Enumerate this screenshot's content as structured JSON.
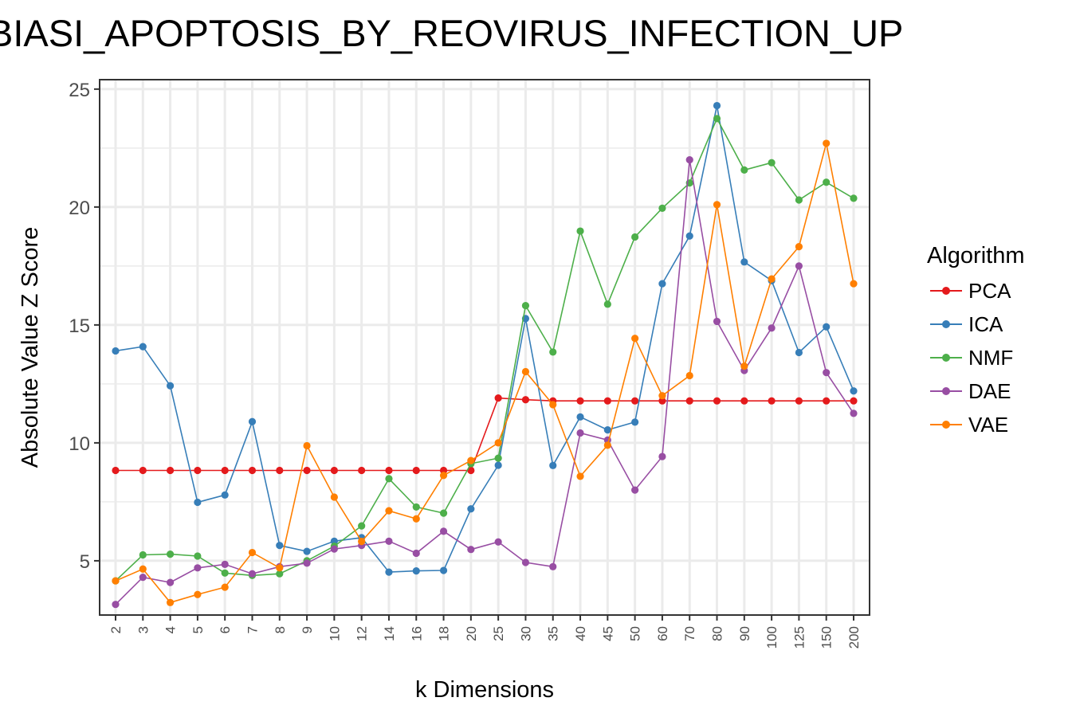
{
  "chart_data": {
    "type": "line",
    "title": "BIASI_APOPTOSIS_BY_REOVIRUS_INFECTION_UP",
    "xlabel": "k Dimensions",
    "ylabel": "Absolute Value Z Score",
    "categories": [
      "2",
      "3",
      "4",
      "5",
      "6",
      "7",
      "8",
      "9",
      "10",
      "12",
      "14",
      "16",
      "18",
      "20",
      "25",
      "30",
      "35",
      "40",
      "45",
      "50",
      "60",
      "70",
      "80",
      "90",
      "100",
      "125",
      "150",
      "200"
    ],
    "ylim": [
      2.7,
      25.4
    ],
    "yticks": [
      5,
      10,
      15,
      20,
      25
    ],
    "grid": true,
    "legend": {
      "title": "Algorithm",
      "position": "right"
    },
    "series": [
      {
        "name": "PCA",
        "color": "#E41A1C",
        "values": [
          8.83,
          8.83,
          8.83,
          8.83,
          8.83,
          8.83,
          8.83,
          8.83,
          8.83,
          8.83,
          8.83,
          8.83,
          8.83,
          8.83,
          11.9,
          11.83,
          11.78,
          11.78,
          11.78,
          11.78,
          11.78,
          11.78,
          11.78,
          11.78,
          11.78,
          11.78,
          11.78,
          11.78
        ]
      },
      {
        "name": "ICA",
        "color": "#377EB8",
        "values": [
          13.9,
          14.08,
          12.42,
          7.48,
          7.79,
          10.9,
          5.65,
          5.4,
          5.83,
          5.98,
          4.52,
          4.57,
          4.59,
          7.2,
          9.05,
          15.27,
          9.04,
          11.1,
          10.55,
          10.88,
          16.75,
          18.77,
          24.3,
          17.67,
          16.88,
          13.83,
          14.92,
          12.2
        ]
      },
      {
        "name": "NMF",
        "color": "#4DAF4A",
        "values": [
          4.15,
          5.25,
          5.28,
          5.2,
          4.48,
          4.38,
          4.45,
          5.0,
          5.62,
          6.48,
          8.48,
          7.28,
          7.02,
          9.12,
          9.35,
          15.82,
          13.85,
          18.98,
          15.88,
          18.73,
          19.95,
          21.02,
          23.75,
          21.57,
          21.88,
          20.3,
          21.05,
          20.37
        ]
      },
      {
        "name": "DAE",
        "color": "#984EA3",
        "values": [
          3.15,
          4.3,
          4.08,
          4.7,
          4.85,
          4.45,
          4.75,
          4.9,
          5.5,
          5.65,
          5.83,
          5.32,
          6.25,
          5.48,
          5.8,
          4.93,
          4.75,
          10.42,
          10.12,
          8.0,
          9.42,
          22.0,
          15.15,
          13.07,
          14.87,
          17.5,
          12.98,
          11.25
        ]
      },
      {
        "name": "VAE",
        "color": "#FF7F00",
        "values": [
          4.15,
          4.65,
          3.23,
          3.57,
          3.88,
          5.35,
          4.7,
          9.88,
          7.7,
          5.82,
          7.12,
          6.78,
          8.62,
          9.25,
          10.0,
          13.02,
          11.62,
          8.58,
          9.9,
          14.43,
          12.0,
          12.85,
          20.1,
          13.25,
          16.95,
          18.32,
          22.7,
          16.75
        ]
      }
    ]
  }
}
